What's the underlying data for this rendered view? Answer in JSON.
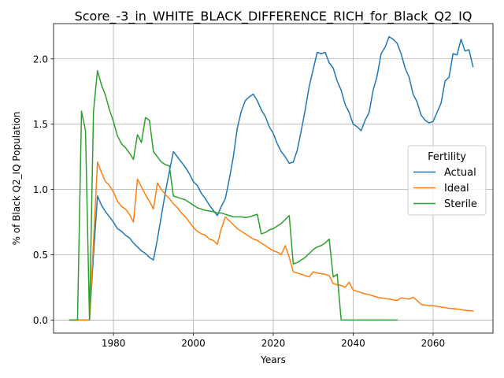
{
  "chart_data": {
    "type": "line",
    "title": "Score_-3_in_WHITE_BLACK_DIFFERENCE_RICH_for_Black_Q2_IQ",
    "xlabel": "Years",
    "ylabel": "% of Black Q2_IQ Population",
    "xlim": [
      1965,
      2075
    ],
    "ylim": [
      -0.1,
      2.27
    ],
    "xticks": [
      1980,
      2000,
      2020,
      2040,
      2060
    ],
    "yticks": [
      0.0,
      0.5,
      1.0,
      1.5,
      2.0
    ],
    "xtick_labels": [
      "1980",
      "2000",
      "2020",
      "2040",
      "2060"
    ],
    "ytick_labels": [
      "0.0",
      "0.5",
      "1.0",
      "1.5",
      "2.0"
    ],
    "grid": true,
    "legend": {
      "title": "Fertility",
      "placement": "center-right"
    },
    "series": [
      {
        "name": "Actual",
        "color": "#1f77b4",
        "points": [
          [
            1969,
            0
          ],
          [
            1971,
            0
          ],
          [
            1972,
            0
          ],
          [
            1973,
            0
          ],
          [
            1974,
            0
          ],
          [
            1975,
            0.5
          ],
          [
            1976,
            0.95
          ],
          [
            1977,
            0.88
          ],
          [
            1978,
            0.83
          ],
          [
            1979,
            0.79
          ],
          [
            1980,
            0.75
          ],
          [
            1981,
            0.7
          ],
          [
            1982,
            0.68
          ],
          [
            1983,
            0.65
          ],
          [
            1984,
            0.63
          ],
          [
            1985,
            0.59
          ],
          [
            1986,
            0.56
          ],
          [
            1987,
            0.53
          ],
          [
            1988,
            0.51
          ],
          [
            1989,
            0.48
          ],
          [
            1990,
            0.46
          ],
          [
            1991,
            0.62
          ],
          [
            1992,
            0.8
          ],
          [
            1993,
            0.98
          ],
          [
            1994,
            1.14
          ],
          [
            1995,
            1.29
          ],
          [
            1996,
            1.25
          ],
          [
            1997,
            1.21
          ],
          [
            1998,
            1.17
          ],
          [
            1999,
            1.12
          ],
          [
            2000,
            1.06
          ],
          [
            2001,
            1.03
          ],
          [
            2002,
            0.97
          ],
          [
            2003,
            0.93
          ],
          [
            2004,
            0.88
          ],
          [
            2005,
            0.84
          ],
          [
            2006,
            0.8
          ],
          [
            2007,
            0.87
          ],
          [
            2008,
            0.93
          ],
          [
            2009,
            1.08
          ],
          [
            2010,
            1.25
          ],
          [
            2011,
            1.47
          ],
          [
            2012,
            1.6
          ],
          [
            2013,
            1.68
          ],
          [
            2014,
            1.71
          ],
          [
            2015,
            1.73
          ],
          [
            2016,
            1.68
          ],
          [
            2017,
            1.61
          ],
          [
            2018,
            1.56
          ],
          [
            2019,
            1.48
          ],
          [
            2020,
            1.43
          ],
          [
            2021,
            1.35
          ],
          [
            2022,
            1.29
          ],
          [
            2023,
            1.25
          ],
          [
            2024,
            1.2
          ],
          [
            2025,
            1.21
          ],
          [
            2026,
            1.3
          ],
          [
            2027,
            1.45
          ],
          [
            2028,
            1.61
          ],
          [
            2029,
            1.79
          ],
          [
            2030,
            1.92
          ],
          [
            2031,
            2.05
          ],
          [
            2032,
            2.04
          ],
          [
            2033,
            2.05
          ],
          [
            2034,
            1.97
          ],
          [
            2035,
            1.93
          ],
          [
            2036,
            1.83
          ],
          [
            2037,
            1.76
          ],
          [
            2038,
            1.65
          ],
          [
            2039,
            1.59
          ],
          [
            2040,
            1.5
          ],
          [
            2041,
            1.48
          ],
          [
            2042,
            1.45
          ],
          [
            2043,
            1.53
          ],
          [
            2044,
            1.59
          ],
          [
            2045,
            1.76
          ],
          [
            2046,
            1.87
          ],
          [
            2047,
            2.04
          ],
          [
            2048,
            2.09
          ],
          [
            2049,
            2.17
          ],
          [
            2050,
            2.15
          ],
          [
            2051,
            2.12
          ],
          [
            2052,
            2.04
          ],
          [
            2053,
            1.93
          ],
          [
            2054,
            1.86
          ],
          [
            2055,
            1.73
          ],
          [
            2056,
            1.67
          ],
          [
            2057,
            1.57
          ],
          [
            2058,
            1.53
          ],
          [
            2059,
            1.51
          ],
          [
            2060,
            1.52
          ],
          [
            2061,
            1.59
          ],
          [
            2062,
            1.66
          ],
          [
            2063,
            1.83
          ],
          [
            2064,
            1.86
          ],
          [
            2065,
            2.04
          ],
          [
            2066,
            2.03
          ],
          [
            2067,
            2.15
          ],
          [
            2068,
            2.06
          ],
          [
            2069,
            2.07
          ],
          [
            2070,
            1.94
          ]
        ]
      },
      {
        "name": "Ideal",
        "color": "#ff7f0e",
        "points": [
          [
            1969,
            0
          ],
          [
            1971,
            0
          ],
          [
            1972,
            0
          ],
          [
            1973,
            0
          ],
          [
            1974,
            0
          ],
          [
            1975,
            0.6
          ],
          [
            1976,
            1.21
          ],
          [
            1977,
            1.13
          ],
          [
            1978,
            1.06
          ],
          [
            1979,
            1.03
          ],
          [
            1980,
            0.98
          ],
          [
            1981,
            0.91
          ],
          [
            1982,
            0.87
          ],
          [
            1983,
            0.85
          ],
          [
            1984,
            0.81
          ],
          [
            1985,
            0.75
          ],
          [
            1986,
            1.08
          ],
          [
            1987,
            1.02
          ],
          [
            1988,
            0.96
          ],
          [
            1989,
            0.91
          ],
          [
            1990,
            0.85
          ],
          [
            1991,
            1.05
          ],
          [
            1992,
            1.0
          ],
          [
            1993,
            0.96
          ],
          [
            1994,
            0.93
          ],
          [
            1995,
            0.89
          ],
          [
            1996,
            0.86
          ],
          [
            1997,
            0.82
          ],
          [
            1998,
            0.79
          ],
          [
            1999,
            0.75
          ],
          [
            2000,
            0.71
          ],
          [
            2001,
            0.68
          ],
          [
            2002,
            0.66
          ],
          [
            2003,
            0.65
          ],
          [
            2004,
            0.62
          ],
          [
            2005,
            0.61
          ],
          [
            2006,
            0.58
          ],
          [
            2007,
            0.7
          ],
          [
            2008,
            0.79
          ],
          [
            2009,
            0.76
          ],
          [
            2010,
            0.73
          ],
          [
            2011,
            0.7
          ],
          [
            2012,
            0.68
          ],
          [
            2013,
            0.66
          ],
          [
            2014,
            0.64
          ],
          [
            2015,
            0.62
          ],
          [
            2016,
            0.61
          ],
          [
            2017,
            0.59
          ],
          [
            2018,
            0.57
          ],
          [
            2019,
            0.55
          ],
          [
            2020,
            0.53
          ],
          [
            2021,
            0.52
          ],
          [
            2022,
            0.5
          ],
          [
            2023,
            0.57
          ],
          [
            2024,
            0.48
          ],
          [
            2025,
            0.37
          ],
          [
            2026,
            0.36
          ],
          [
            2027,
            0.35
          ],
          [
            2028,
            0.34
          ],
          [
            2029,
            0.33
          ],
          [
            2030,
            0.37
          ],
          [
            2031,
            0.36
          ],
          [
            2032,
            0.355
          ],
          [
            2033,
            0.35
          ],
          [
            2034,
            0.34
          ],
          [
            2035,
            0.28
          ],
          [
            2036,
            0.27
          ],
          [
            2037,
            0.265
          ],
          [
            2038,
            0.25
          ],
          [
            2039,
            0.29
          ],
          [
            2040,
            0.23
          ],
          [
            2041,
            0.22
          ],
          [
            2042,
            0.21
          ],
          [
            2043,
            0.2
          ],
          [
            2044,
            0.195
          ],
          [
            2045,
            0.185
          ],
          [
            2046,
            0.175
          ],
          [
            2047,
            0.17
          ],
          [
            2048,
            0.165
          ],
          [
            2049,
            0.16
          ],
          [
            2050,
            0.155
          ],
          [
            2051,
            0.15
          ],
          [
            2052,
            0.17
          ],
          [
            2053,
            0.165
          ],
          [
            2054,
            0.16
          ],
          [
            2055,
            0.175
          ],
          [
            2056,
            0.15
          ],
          [
            2057,
            0.12
          ],
          [
            2058,
            0.115
          ],
          [
            2059,
            0.11
          ],
          [
            2060,
            0.11
          ],
          [
            2061,
            0.105
          ],
          [
            2062,
            0.1
          ],
          [
            2063,
            0.095
          ],
          [
            2064,
            0.09
          ],
          [
            2065,
            0.088
          ],
          [
            2066,
            0.085
          ],
          [
            2067,
            0.08
          ],
          [
            2068,
            0.075
          ],
          [
            2069,
            0.072
          ],
          [
            2070,
            0.07
          ]
        ]
      },
      {
        "name": "Sterile",
        "color": "#2ca02c",
        "points": [
          [
            1969,
            0
          ],
          [
            1971,
            0
          ],
          [
            1972,
            1.6
          ],
          [
            1973,
            1.45
          ],
          [
            1974,
            0
          ],
          [
            1975,
            1.6
          ],
          [
            1976,
            1.91
          ],
          [
            1977,
            1.8
          ],
          [
            1978,
            1.72
          ],
          [
            1979,
            1.61
          ],
          [
            1980,
            1.52
          ],
          [
            1981,
            1.41
          ],
          [
            1982,
            1.35
          ],
          [
            1983,
            1.32
          ],
          [
            1984,
            1.28
          ],
          [
            1985,
            1.23
          ],
          [
            1986,
            1.42
          ],
          [
            1987,
            1.36
          ],
          [
            1988,
            1.55
          ],
          [
            1989,
            1.53
          ],
          [
            1990,
            1.29
          ],
          [
            1991,
            1.25
          ],
          [
            1992,
            1.21
          ],
          [
            1993,
            1.19
          ],
          [
            1994,
            1.18
          ],
          [
            1995,
            0.95
          ],
          [
            1996,
            0.94
          ],
          [
            1997,
            0.93
          ],
          [
            1998,
            0.92
          ],
          [
            1999,
            0.9
          ],
          [
            2000,
            0.88
          ],
          [
            2001,
            0.86
          ],
          [
            2002,
            0.85
          ],
          [
            2003,
            0.84
          ],
          [
            2004,
            0.835
          ],
          [
            2005,
            0.83
          ],
          [
            2006,
            0.82
          ],
          [
            2007,
            0.82
          ],
          [
            2008,
            0.81
          ],
          [
            2009,
            0.8
          ],
          [
            2010,
            0.79
          ],
          [
            2011,
            0.79
          ],
          [
            2012,
            0.79
          ],
          [
            2013,
            0.785
          ],
          [
            2014,
            0.79
          ],
          [
            2015,
            0.8
          ],
          [
            2016,
            0.81
          ],
          [
            2017,
            0.66
          ],
          [
            2018,
            0.67
          ],
          [
            2019,
            0.69
          ],
          [
            2020,
            0.7
          ],
          [
            2021,
            0.72
          ],
          [
            2022,
            0.74
          ],
          [
            2023,
            0.77
          ],
          [
            2024,
            0.8
          ],
          [
            2025,
            0.43
          ],
          [
            2026,
            0.44
          ],
          [
            2027,
            0.46
          ],
          [
            2028,
            0.48
          ],
          [
            2029,
            0.51
          ],
          [
            2030,
            0.54
          ],
          [
            2031,
            0.56
          ],
          [
            2032,
            0.57
          ],
          [
            2033,
            0.59
          ],
          [
            2034,
            0.62
          ],
          [
            2035,
            0.33
          ],
          [
            2036,
            0.35
          ],
          [
            2037,
            0
          ],
          [
            2040,
            0
          ],
          [
            2045,
            0
          ],
          [
            2050,
            0
          ],
          [
            2051,
            0
          ]
        ]
      }
    ]
  }
}
